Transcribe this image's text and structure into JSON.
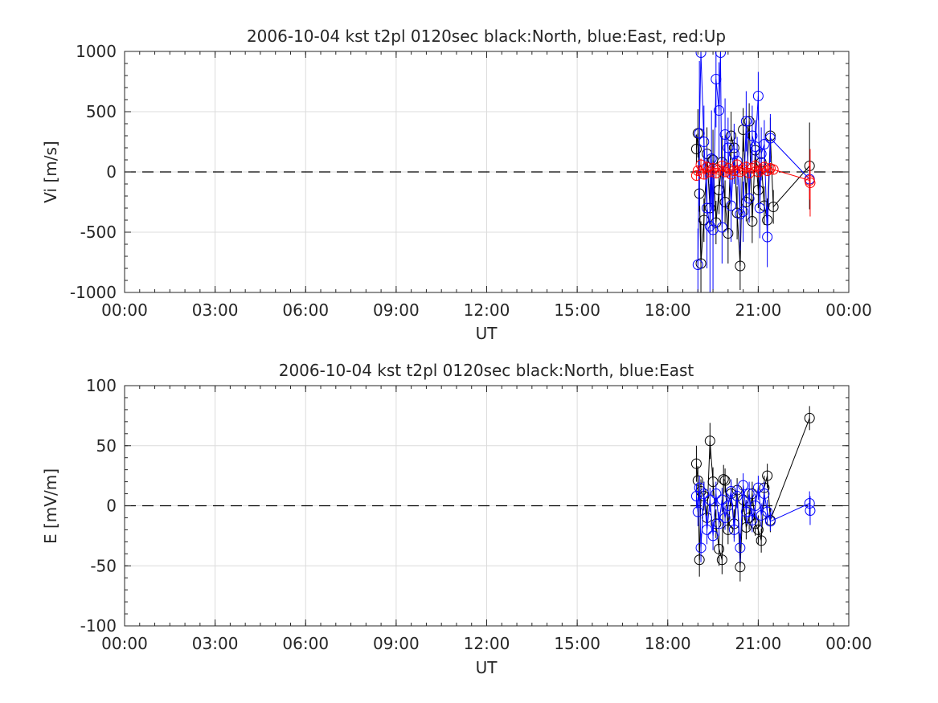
{
  "chart_data": [
    {
      "type": "scatter",
      "title": "2006-10-04 kst t2pl 0120sec black:North, blue:East, red:Up",
      "xlabel": "UT",
      "ylabel": "Vi [m/s]",
      "xlim": [
        0,
        24
      ],
      "ylim": [
        -1000,
        1000
      ],
      "x_ticks": [
        0,
        3,
        6,
        9,
        12,
        15,
        18,
        21,
        24
      ],
      "x_tick_labels": [
        "00:00",
        "03:00",
        "06:00",
        "09:00",
        "12:00",
        "15:00",
        "18:00",
        "21:00",
        "00:00"
      ],
      "y_ticks": [
        -1000,
        -500,
        0,
        500,
        1000
      ],
      "y_tick_labels": [
        "-1000",
        "-500",
        "0",
        "500",
        "1000"
      ],
      "grid": true,
      "reference_line": 0,
      "series": [
        {
          "color": "#000000",
          "x": [
            18.95,
            19.0,
            19.05,
            19.1,
            19.2,
            19.3,
            19.4,
            19.5,
            19.6,
            19.7,
            19.8,
            19.9,
            20.0,
            20.1,
            20.2,
            20.3,
            20.4,
            20.5,
            20.6,
            20.7,
            20.8,
            20.9,
            21.0,
            21.1,
            21.2,
            21.3,
            21.4,
            21.5,
            22.7
          ],
          "y": [
            190,
            320,
            -180,
            -760,
            -400,
            150,
            -300,
            100,
            -420,
            -150,
            80,
            -250,
            -510,
            300,
            200,
            -340,
            -780,
            350,
            -250,
            420,
            -410,
            180,
            -150,
            80,
            -280,
            -400,
            300,
            -290,
            50
          ],
          "err": [
            120,
            200,
            150,
            350,
            180,
            220,
            200,
            250,
            180,
            200,
            220,
            180,
            250,
            200,
            150,
            220,
            200,
            180,
            160,
            150,
            180,
            160,
            150,
            120,
            160,
            180,
            150,
            140,
            360
          ]
        },
        {
          "color": "#0000ff",
          "x": [
            19.0,
            19.05,
            19.1,
            19.2,
            19.3,
            19.4,
            19.45,
            19.5,
            19.6,
            19.7,
            19.75,
            19.8,
            19.9,
            20.0,
            20.1,
            20.2,
            20.3,
            20.4,
            20.5,
            20.6,
            20.7,
            20.8,
            20.9,
            21.0,
            21.05,
            21.1,
            21.2,
            21.3,
            21.4,
            22.7
          ],
          "y": [
            -770,
            320,
            990,
            250,
            -300,
            -450,
            110,
            -480,
            770,
            510,
            990,
            -460,
            310,
            200,
            -280,
            150,
            90,
            -350,
            -330,
            420,
            -220,
            300,
            210,
            630,
            -300,
            150,
            230,
            -540,
            280,
            -60
          ],
          "err": [
            300,
            600,
            40,
            300,
            500,
            600,
            400,
            500,
            400,
            400,
            40,
            300,
            300,
            250,
            300,
            250,
            200,
            300,
            250,
            250,
            200,
            250,
            220,
            200,
            250,
            220,
            200,
            250,
            200,
            100
          ]
        },
        {
          "color": "#ff0000",
          "x": [
            18.95,
            19.0,
            19.1,
            19.2,
            19.3,
            19.4,
            19.5,
            19.6,
            19.7,
            19.8,
            19.9,
            20.0,
            20.1,
            20.2,
            20.3,
            20.4,
            20.5,
            20.6,
            20.7,
            20.8,
            20.9,
            21.0,
            21.1,
            21.2,
            21.3,
            21.4,
            21.5,
            22.7,
            22.72
          ],
          "y": [
            -30,
            10,
            60,
            -20,
            40,
            0,
            30,
            -10,
            20,
            50,
            0,
            30,
            -20,
            10,
            60,
            0,
            20,
            40,
            -10,
            30,
            50,
            0,
            20,
            40,
            10,
            30,
            20,
            -70,
            -90
          ],
          "err": [
            40,
            40,
            50,
            40,
            50,
            40,
            50,
            40,
            40,
            50,
            40,
            50,
            40,
            40,
            50,
            40,
            40,
            50,
            40,
            40,
            50,
            40,
            40,
            50,
            40,
            40,
            40,
            160,
            280
          ]
        }
      ]
    },
    {
      "type": "scatter",
      "title": "2006-10-04 kst t2pl 0120sec black:North, blue:East",
      "xlabel": "UT",
      "ylabel": "E [mV/m]",
      "xlim": [
        0,
        24
      ],
      "ylim": [
        -100,
        100
      ],
      "x_ticks": [
        0,
        3,
        6,
        9,
        12,
        15,
        18,
        21,
        24
      ],
      "x_tick_labels": [
        "00:00",
        "03:00",
        "06:00",
        "09:00",
        "12:00",
        "15:00",
        "18:00",
        "21:00",
        "00:00"
      ],
      "y_ticks": [
        -100,
        -50,
        0,
        50,
        100
      ],
      "y_tick_labels": [
        "-100",
        "-50",
        "0",
        "50",
        "100"
      ],
      "grid": true,
      "reference_line": 0,
      "series": [
        {
          "color": "#000000",
          "x": [
            18.95,
            19.0,
            19.05,
            19.1,
            19.2,
            19.3,
            19.4,
            19.5,
            19.6,
            19.7,
            19.8,
            19.85,
            19.9,
            20.0,
            20.1,
            20.2,
            20.3,
            20.4,
            20.5,
            20.6,
            20.7,
            20.8,
            20.9,
            21.0,
            21.1,
            21.2,
            21.3,
            21.4,
            22.7
          ],
          "y": [
            35,
            21,
            -45,
            12,
            8,
            -10,
            54,
            20,
            -15,
            -36,
            -45,
            22,
            21,
            -20,
            10,
            -15,
            13,
            -51,
            5,
            -18,
            -10,
            10,
            -15,
            -20,
            -29,
            15,
            25,
            -12,
            73
          ],
          "err": [
            15,
            12,
            14,
            10,
            12,
            10,
            15,
            12,
            12,
            14,
            12,
            12,
            10,
            12,
            10,
            12,
            10,
            12,
            10,
            10,
            10,
            10,
            10,
            12,
            10,
            10,
            10,
            10,
            10
          ]
        },
        {
          "color": "#0000ff",
          "x": [
            18.95,
            19.0,
            19.05,
            19.1,
            19.2,
            19.3,
            19.4,
            19.5,
            19.6,
            19.7,
            19.8,
            19.9,
            20.0,
            20.1,
            20.2,
            20.3,
            20.4,
            20.5,
            20.6,
            20.7,
            20.8,
            20.9,
            21.0,
            21.1,
            21.2,
            21.3,
            21.4,
            22.7,
            22.72
          ],
          "y": [
            8,
            -5,
            15,
            -35,
            10,
            -20,
            5,
            -25,
            10,
            -15,
            5,
            -10,
            0,
            12,
            -20,
            8,
            -35,
            17,
            -5,
            10,
            -12,
            0,
            15,
            -8,
            10,
            -5,
            -13,
            2,
            -4
          ],
          "err": [
            10,
            12,
            10,
            12,
            10,
            12,
            10,
            12,
            10,
            10,
            10,
            10,
            10,
            10,
            10,
            10,
            12,
            10,
            10,
            10,
            10,
            10,
            10,
            10,
            10,
            10,
            8,
            10,
            12
          ]
        }
      ]
    }
  ]
}
